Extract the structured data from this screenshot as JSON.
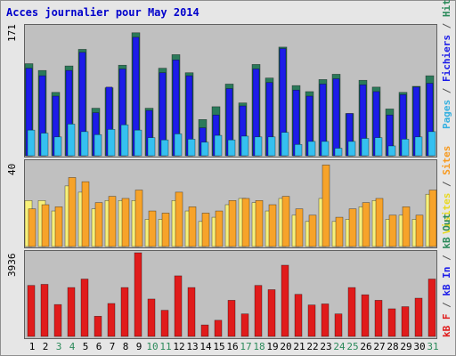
{
  "title": "Acces journalier pour May 2014",
  "colors": {
    "frame_bg": "#e6e6e6",
    "panel_bg": "#c0c0c0",
    "hits": "#2b7a5a",
    "files": "#1c1ce8",
    "pages": "#35c0f0",
    "visits": "#f7f07a",
    "sites": "#f7a32a",
    "kbin": "#e01b1b",
    "weekday_label": "#000000",
    "weekend_label": "#2b8a5a"
  },
  "labels": {
    "panel1_max": "171",
    "panel2_max": "40",
    "panel3_max": "3936",
    "right1": [
      {
        "text": "Pages",
        "color": "#35b0e0"
      },
      {
        "text": " / ",
        "color": "#555555"
      },
      {
        "text": "Fichiers",
        "color": "#1c1ce8"
      },
      {
        "text": " / ",
        "color": "#555555"
      },
      {
        "text": "Hits",
        "color": "#2b8a5a"
      }
    ],
    "right2": [
      {
        "text": "Visites",
        "color": "#e8d820"
      },
      {
        "text": " / ",
        "color": "#555555"
      },
      {
        "text": "Sites",
        "color": "#f79a20"
      }
    ],
    "right3": [
      {
        "text": "kB F",
        "color": "#e01b1b"
      },
      {
        "text": " / ",
        "color": "#555555"
      },
      {
        "text": "kB In",
        "color": "#1c1ce8"
      },
      {
        "text": " / ",
        "color": "#555555"
      },
      {
        "text": "kB Out",
        "color": "#2b8a5a"
      }
    ]
  },
  "chart_data": [
    {
      "type": "bar",
      "ylim": [
        0,
        171
      ],
      "categories": [
        "1",
        "2",
        "3",
        "4",
        "5",
        "6",
        "7",
        "8",
        "9",
        "10",
        "11",
        "12",
        "13",
        "14",
        "15",
        "16",
        "17",
        "18",
        "19",
        "20",
        "21",
        "22",
        "23",
        "24",
        "25",
        "26",
        "27",
        "28",
        "29",
        "30",
        "31"
      ],
      "weekend_days": [
        "3",
        "4",
        "10",
        "11",
        "17",
        "18",
        "24",
        "25",
        "31"
      ],
      "series": [
        {
          "name": "Hits",
          "values": [
            122,
            113,
            84,
            119,
            141,
            63,
            90,
            120,
            163,
            63,
            116,
            134,
            110,
            48,
            65,
            95,
            70,
            121,
            103,
            144,
            93,
            85,
            101,
            108,
            56,
            100,
            91,
            62,
            84,
            92,
            106
          ]
        },
        {
          "name": "Fichiers",
          "values": [
            116,
            106,
            79,
            113,
            137,
            57,
            91,
            115,
            157,
            60,
            110,
            127,
            106,
            37,
            54,
            89,
            66,
            115,
            97,
            142,
            87,
            79,
            95,
            102,
            56,
            94,
            85,
            54,
            81,
            91,
            96
          ]
        },
        {
          "name": "Pages",
          "values": [
            34,
            30,
            25,
            42,
            32,
            28,
            35,
            41,
            34,
            24,
            21,
            29,
            22,
            18,
            27,
            21,
            26,
            25,
            25,
            31,
            15,
            19,
            19,
            10,
            19,
            23,
            24,
            13,
            22,
            25,
            32
          ]
        }
      ]
    },
    {
      "type": "bar",
      "ylim": [
        0,
        40
      ],
      "categories": [
        "1",
        "2",
        "3",
        "4",
        "5",
        "6",
        "7",
        "8",
        "9",
        "10",
        "11",
        "12",
        "13",
        "14",
        "15",
        "16",
        "17",
        "18",
        "19",
        "20",
        "21",
        "22",
        "23",
        "24",
        "25",
        "26",
        "27",
        "28",
        "29",
        "30",
        "31"
      ],
      "series": [
        {
          "name": "Visites",
          "values": [
            22,
            22,
            17,
            29,
            26,
            18,
            22,
            22,
            22,
            13,
            13,
            22,
            17,
            12,
            14,
            20,
            23,
            21,
            17,
            23,
            15,
            12,
            23,
            12,
            13,
            19,
            22,
            13,
            15,
            13,
            25
          ]
        },
        {
          "name": "Sites",
          "values": [
            18,
            20,
            19,
            33,
            31,
            21,
            24,
            23,
            27,
            17,
            16,
            26,
            19,
            16,
            17,
            22,
            23,
            22,
            20,
            24,
            18,
            15,
            39,
            14,
            18,
            21,
            23,
            15,
            19,
            15,
            27
          ]
        }
      ]
    },
    {
      "type": "bar",
      "ylim": [
        0,
        3936
      ],
      "categories": [
        "1",
        "2",
        "3",
        "4",
        "5",
        "6",
        "7",
        "8",
        "9",
        "10",
        "11",
        "12",
        "13",
        "14",
        "15",
        "16",
        "17",
        "18",
        "19",
        "20",
        "21",
        "22",
        "23",
        "24",
        "25",
        "26",
        "27",
        "28",
        "29",
        "30",
        "31"
      ],
      "series": [
        {
          "name": "kB F",
          "values": [
            2400,
            2450,
            1500,
            2300,
            2700,
            950,
            1550,
            2300,
            3936,
            1760,
            1230,
            2850,
            2300,
            540,
            760,
            1700,
            1060,
            2400,
            2200,
            3350,
            1980,
            1480,
            1530,
            1060,
            2300,
            1960,
            1700,
            1300,
            1400,
            1800,
            2700
          ]
        }
      ]
    }
  ]
}
